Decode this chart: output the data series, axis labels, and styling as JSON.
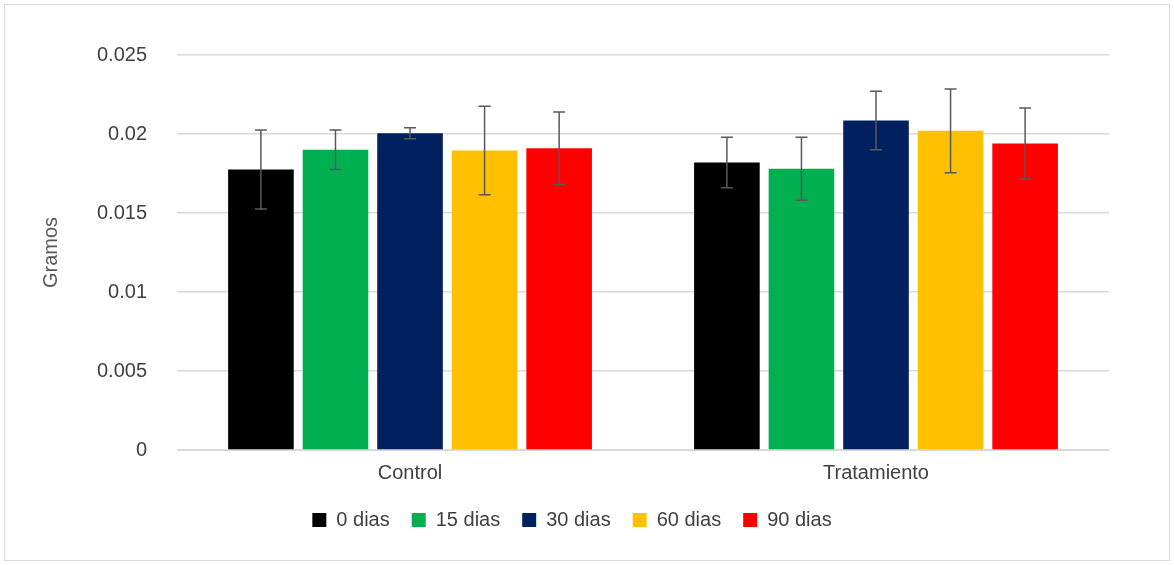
{
  "chart_data": {
    "type": "bar",
    "ylabel": "Gramos",
    "categories": [
      "Control",
      "Tratamiento"
    ],
    "series": [
      {
        "name": "0 dias",
        "color": "#000000",
        "values": [
          0.01775,
          0.0182
        ],
        "errors": [
          0.0025,
          0.0016
        ]
      },
      {
        "name": "15 dias",
        "color": "#00b050",
        "values": [
          0.019,
          0.0178
        ],
        "errors": [
          0.00125,
          0.002
        ]
      },
      {
        "name": "30 dias",
        "color": "#002060",
        "values": [
          0.02005,
          0.02085
        ],
        "errors": [
          0.00035,
          0.00185
        ]
      },
      {
        "name": "60 dias",
        "color": "#ffc000",
        "values": [
          0.01895,
          0.0202
        ],
        "errors": [
          0.0028,
          0.00265
        ]
      },
      {
        "name": "90 dias",
        "color": "#ff0000",
        "values": [
          0.0191,
          0.0194
        ],
        "errors": [
          0.0023,
          0.00225
        ]
      }
    ],
    "ylim": [
      0,
      0.025
    ],
    "yticks": [
      0,
      0.005,
      0.01,
      0.015,
      0.02,
      0.025
    ],
    "grid": "y",
    "legend": "bottom"
  }
}
